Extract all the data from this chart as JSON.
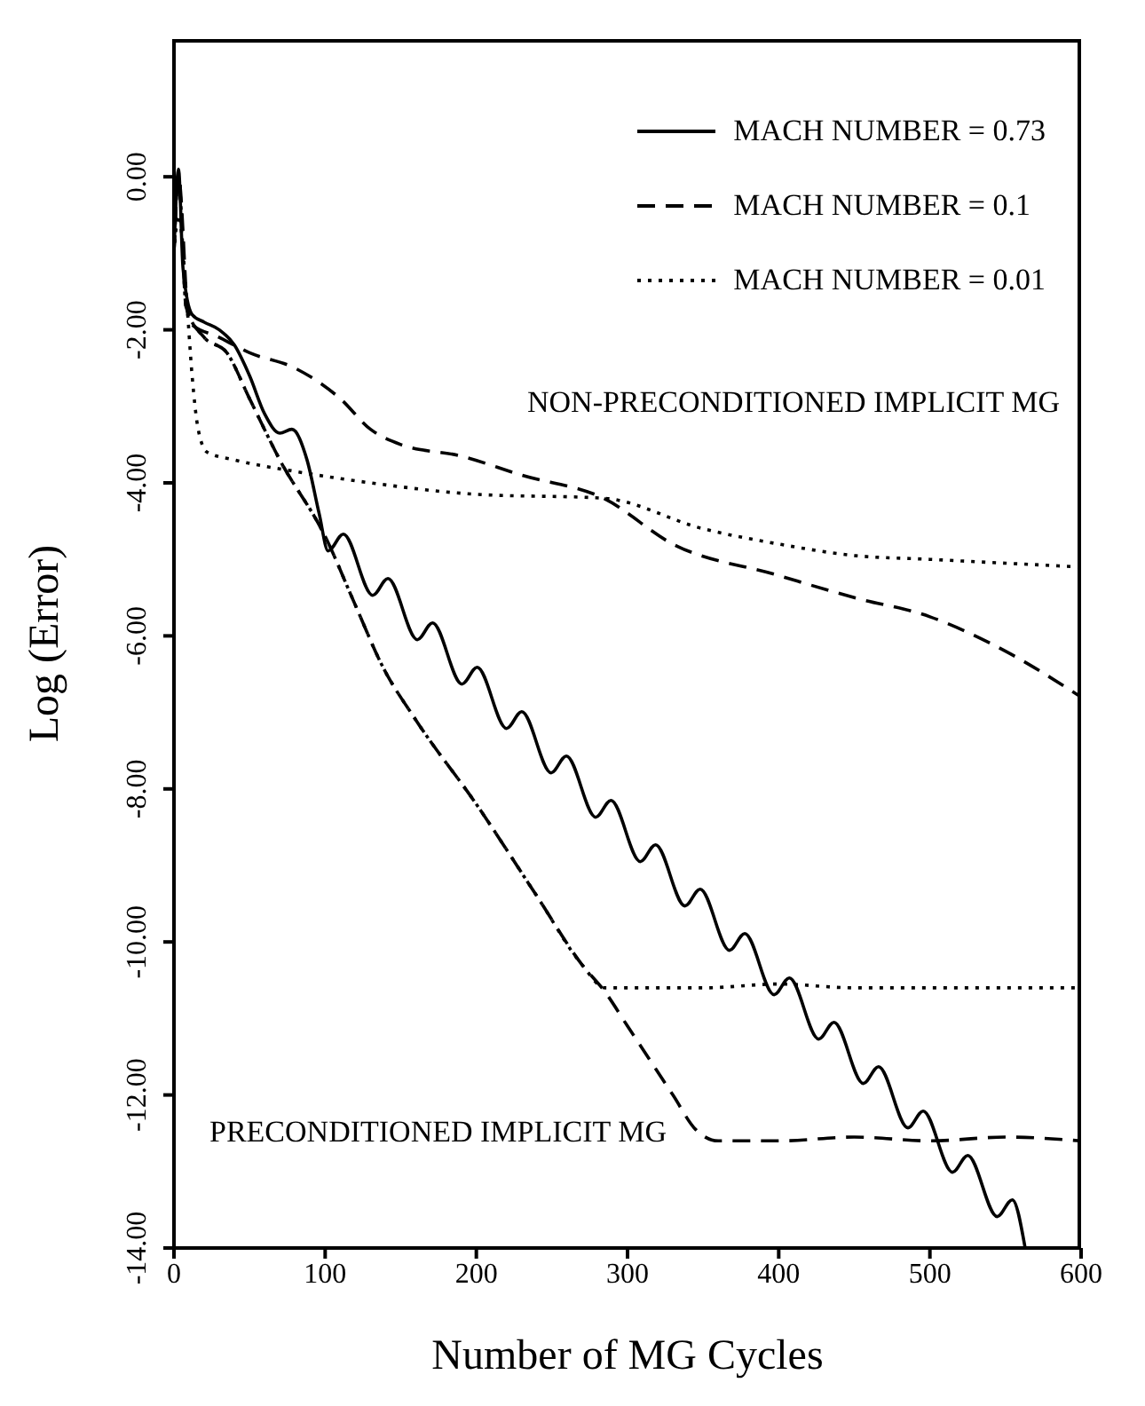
{
  "chart_data": {
    "type": "line",
    "xlabel": "Number of MG Cycles",
    "ylabel": "Log (Error)",
    "xlim": [
      0,
      600
    ],
    "xticks": [
      0,
      100,
      200,
      300,
      400,
      500,
      600
    ],
    "ylim": [
      -14,
      1.8
    ],
    "yticks": [
      {
        "value": 0,
        "label": "0.00"
      },
      {
        "value": -2,
        "label": "-2.00"
      },
      {
        "value": -4,
        "label": "-4.00"
      },
      {
        "value": -6,
        "label": "-6.00"
      },
      {
        "value": -8,
        "label": "-8.00"
      },
      {
        "value": -10,
        "label": "-10.00"
      },
      {
        "value": -12,
        "label": "-12.00"
      },
      {
        "value": -14,
        "label": "-14.00"
      }
    ],
    "grid": false,
    "legend": "top right",
    "marker": "none",
    "annotations": [
      "NON-PRECONDITIONED IMPLICIT MG",
      "PRECONDITIONED IMPLICIT MG"
    ],
    "series": [
      {
        "name": "MACH NUMBER = 0.73",
        "color": "#000000",
        "line_style": "solid",
        "x": [
          0,
          3,
          6,
          12,
          20,
          30,
          40,
          50,
          60,
          70,
          78,
          88,
          96,
          102,
          112,
          131.5,
          141.5,
          161,
          171,
          190.5,
          200.5,
          220,
          230,
          249.5,
          259.5,
          279,
          289,
          308.5,
          318.5,
          338,
          348,
          367.5,
          377.5,
          397,
          407,
          426.5,
          436.5,
          456,
          466,
          485.5,
          495.5,
          515,
          525,
          544.5,
          554.5,
          563
        ],
        "values": [
          -1,
          0.1,
          -1.2,
          -1.8,
          -1.9,
          -2,
          -2.2,
          -2.6,
          -3.1,
          -3.35,
          -3.3,
          -3.7,
          -4.4,
          -4.89,
          -4.67,
          -5.47,
          -5.25,
          -6.05,
          -5.83,
          -6.63,
          -6.41,
          -7.21,
          -6.99,
          -7.79,
          -7.57,
          -8.37,
          -8.15,
          -8.95,
          -8.73,
          -9.53,
          -9.31,
          -10.11,
          -9.89,
          -10.69,
          -10.47,
          -11.27,
          -11.05,
          -11.85,
          -11.63,
          -12.43,
          -12.21,
          -13.01,
          -12.79,
          -13.59,
          -13.37,
          -14
        ]
      },
      {
        "name": "MACH NUMBER = 0.1",
        "color": "#000000",
        "line_style": "dashed",
        "x": [
          0,
          3,
          10,
          30,
          50,
          80,
          110,
          130,
          150,
          190,
          230,
          284,
          330,
          398,
          450,
          500,
          550,
          600
        ],
        "values": [
          -1,
          0,
          -1.9,
          -2.1,
          -2.3,
          -2.5,
          -2.9,
          -3.3,
          -3.5,
          -3.65,
          -3.9,
          -4.2,
          -4.8,
          -5.2,
          -5.5,
          -5.75,
          -6.2,
          -6.8
        ]
      },
      {
        "name": "MACH NUMBER = 0.01",
        "color": "#000000",
        "line_style": "dotted",
        "x": [
          0,
          3,
          8,
          12,
          16,
          22,
          40,
          80,
          130,
          200,
          284,
          350,
          400,
          450,
          500,
          550,
          600
        ],
        "values": [
          -1,
          -0.5,
          -1.5,
          -2.6,
          -3.3,
          -3.6,
          -3.7,
          -3.85,
          -4,
          -4.15,
          -4.2,
          -4.6,
          -4.8,
          -4.95,
          -5,
          -5.05,
          -5.1
        ]
      },
      {
        "color": "#000000",
        "line_style": "dashed",
        "x": [
          0,
          3,
          8,
          20,
          35,
          50,
          70,
          100,
          120,
          138,
          160,
          200,
          240,
          270,
          285,
          300,
          330,
          345,
          360,
          400,
          450,
          500,
          550,
          600
        ],
        "values": [
          -1,
          0,
          -1.7,
          -2.1,
          -2.3,
          -2.9,
          -3.7,
          -4.7,
          -5.6,
          -6.4,
          -7.1,
          -8.2,
          -9.4,
          -10.3,
          -10.65,
          -11.1,
          -12,
          -12.45,
          -12.6,
          -12.6,
          -12.55,
          -12.6,
          -12.55,
          -12.6
        ]
      },
      {
        "color": "#000000",
        "line_style": "dotted",
        "x": [
          0,
          3,
          8,
          20,
          35,
          50,
          70,
          100,
          120,
          138,
          160,
          200,
          240,
          270,
          285,
          300,
          350,
          400,
          450,
          500,
          550,
          600
        ],
        "values": [
          -1,
          0,
          -1.7,
          -2.1,
          -2.3,
          -2.9,
          -3.7,
          -4.7,
          -5.6,
          -6.4,
          -7.1,
          -8.2,
          -9.4,
          -10.3,
          -10.6,
          -10.6,
          -10.6,
          -10.55,
          -10.6,
          -10.6,
          -10.6,
          -10.6
        ]
      }
    ]
  }
}
